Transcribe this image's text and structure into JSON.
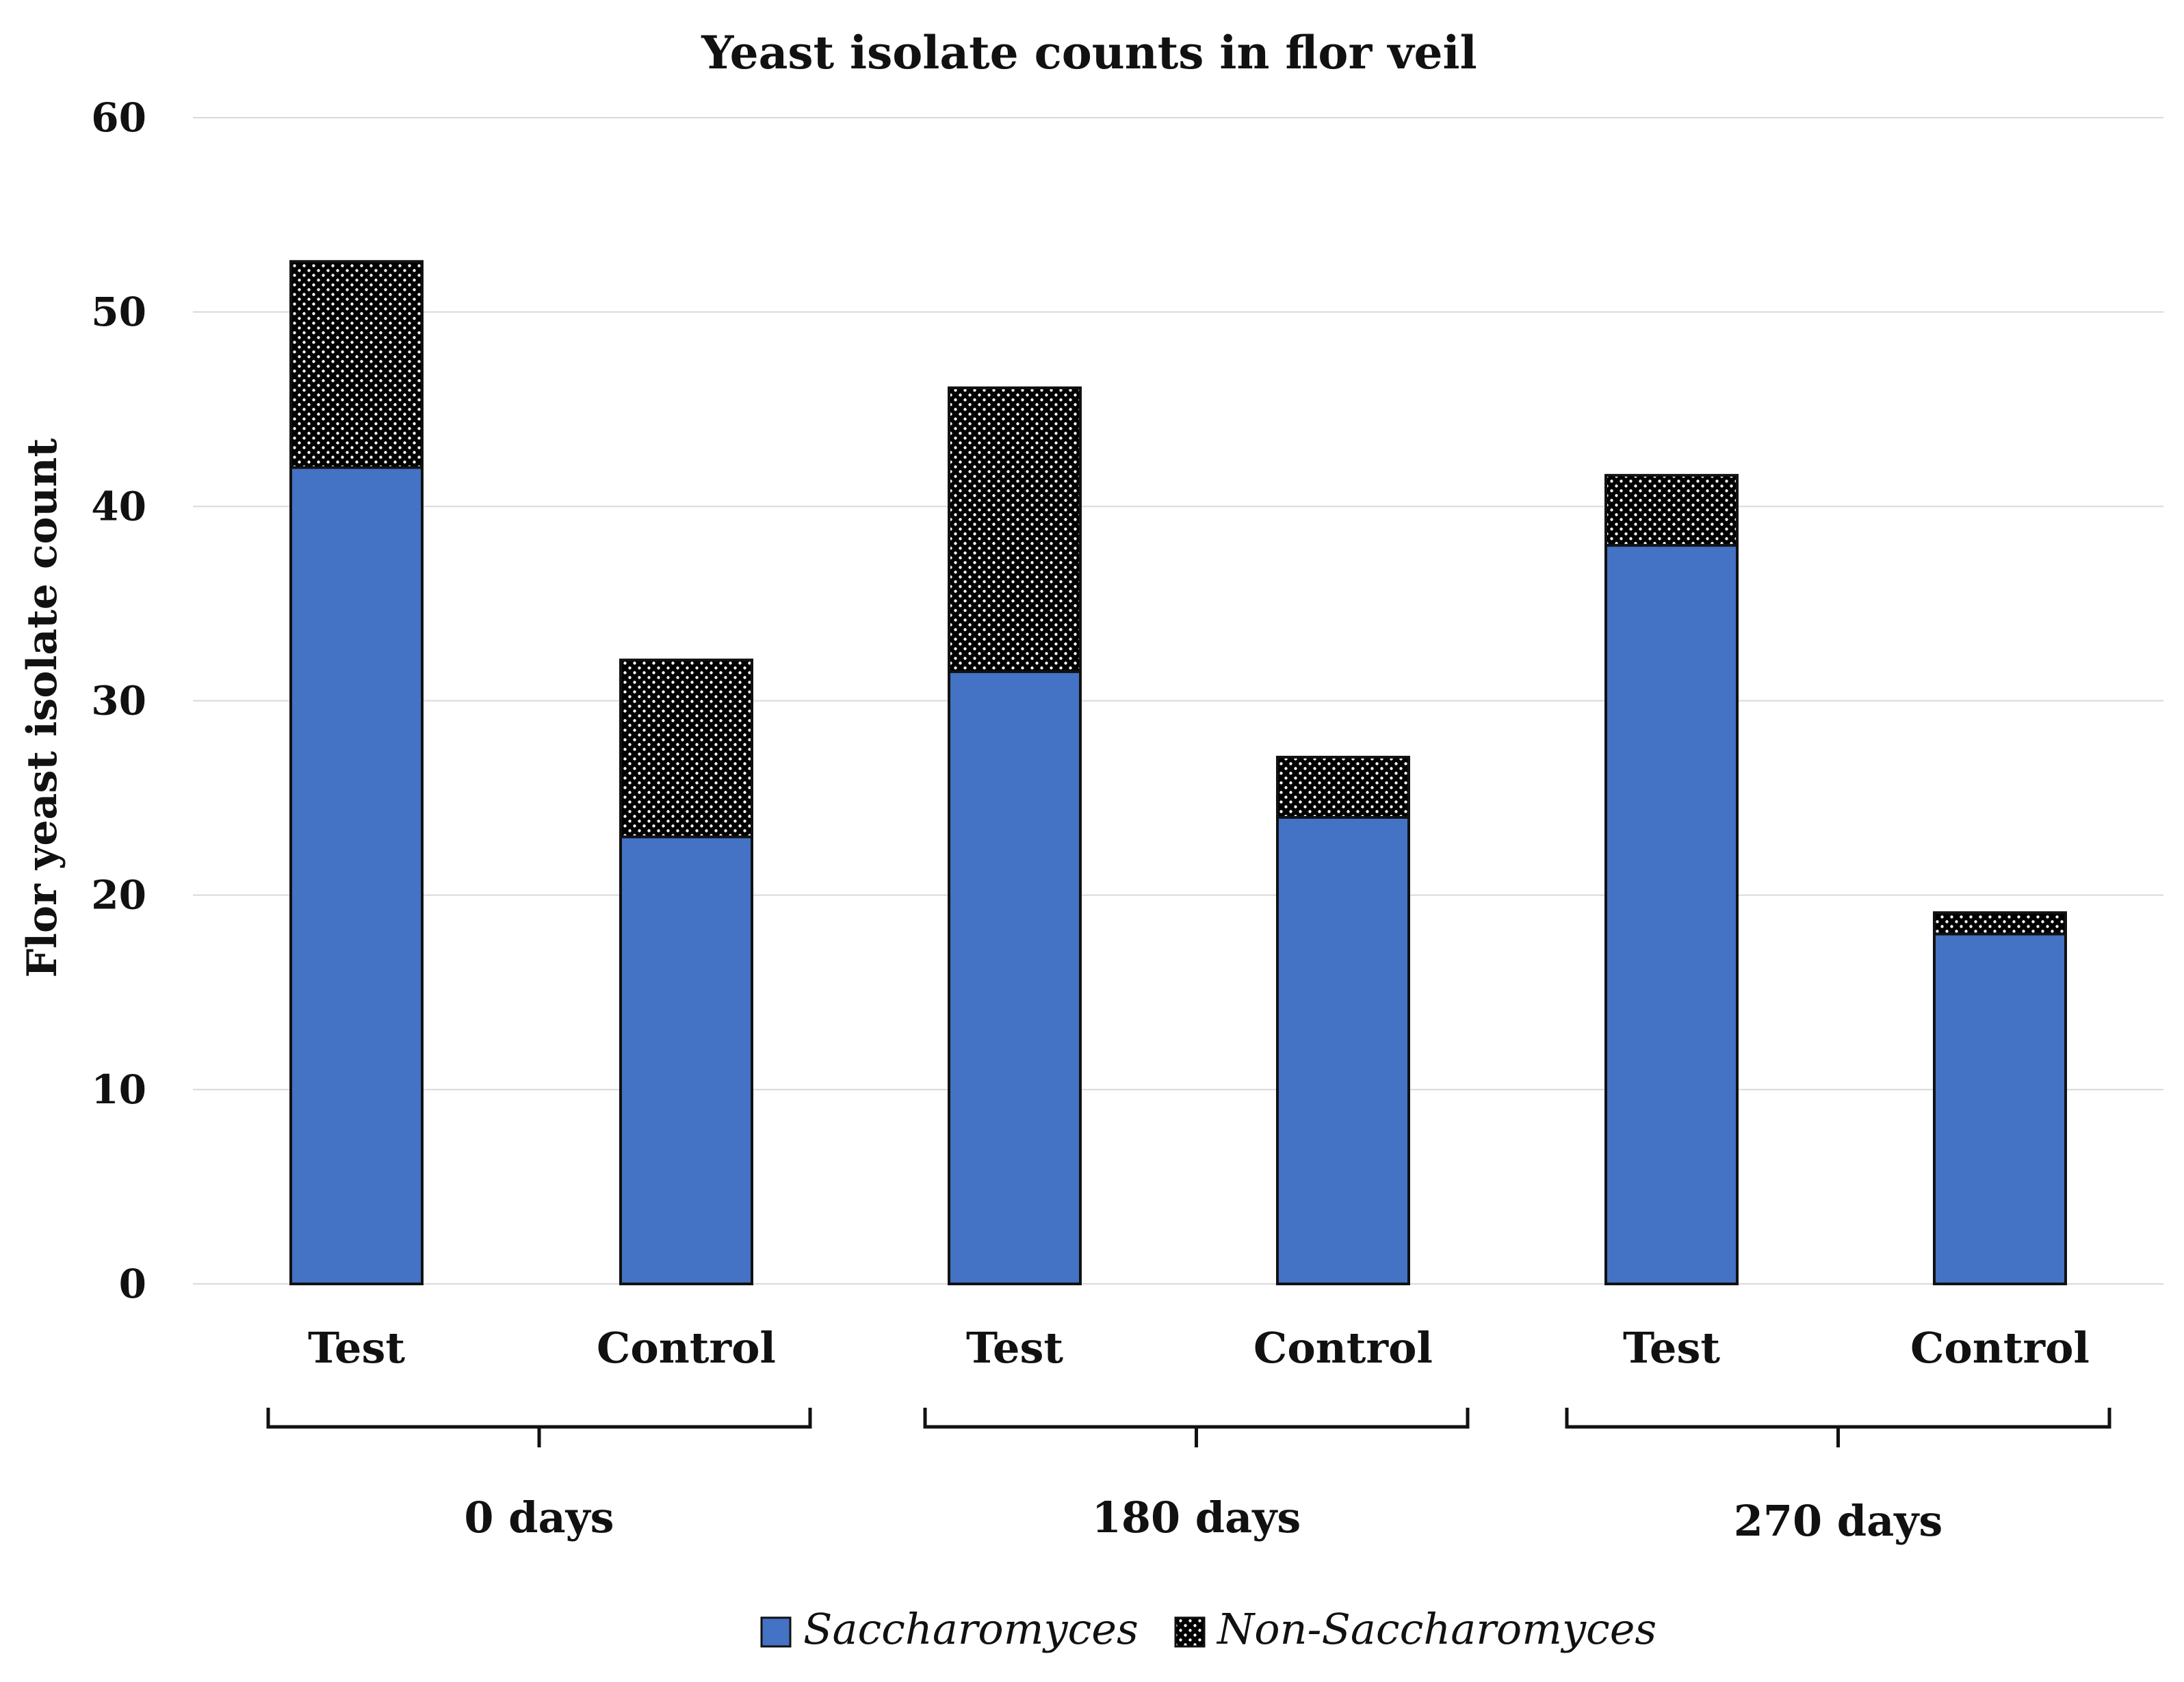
{
  "chart_data": {
    "type": "bar",
    "stacked": true,
    "title": "Yeast isolate counts in flor veil",
    "xlabel": "",
    "ylabel": "Flor yeast isolate count",
    "ylim": [
      0,
      60
    ],
    "yticks": [
      0,
      10,
      20,
      30,
      40,
      50,
      60
    ],
    "grid": true,
    "categories": [
      "Test",
      "Control",
      "Test",
      "Control",
      "Test",
      "Control"
    ],
    "groups": [
      {
        "label": "0 days",
        "category_indices": [
          0,
          1
        ]
      },
      {
        "label": "180 days",
        "category_indices": [
          2,
          3
        ]
      },
      {
        "label": "270 days",
        "category_indices": [
          4,
          5
        ]
      }
    ],
    "series": [
      {
        "name": "Saccharomyces",
        "color": "#4472c4",
        "pattern": "solid",
        "values": [
          42,
          23,
          31.5,
          24,
          38,
          18
        ]
      },
      {
        "name": "Non-Saccharomyces",
        "color": "#000000",
        "pattern": "dotted",
        "values": [
          10.6,
          9.1,
          14.6,
          3.1,
          3.6,
          1.1
        ]
      }
    ],
    "legend_position": "bottom"
  }
}
